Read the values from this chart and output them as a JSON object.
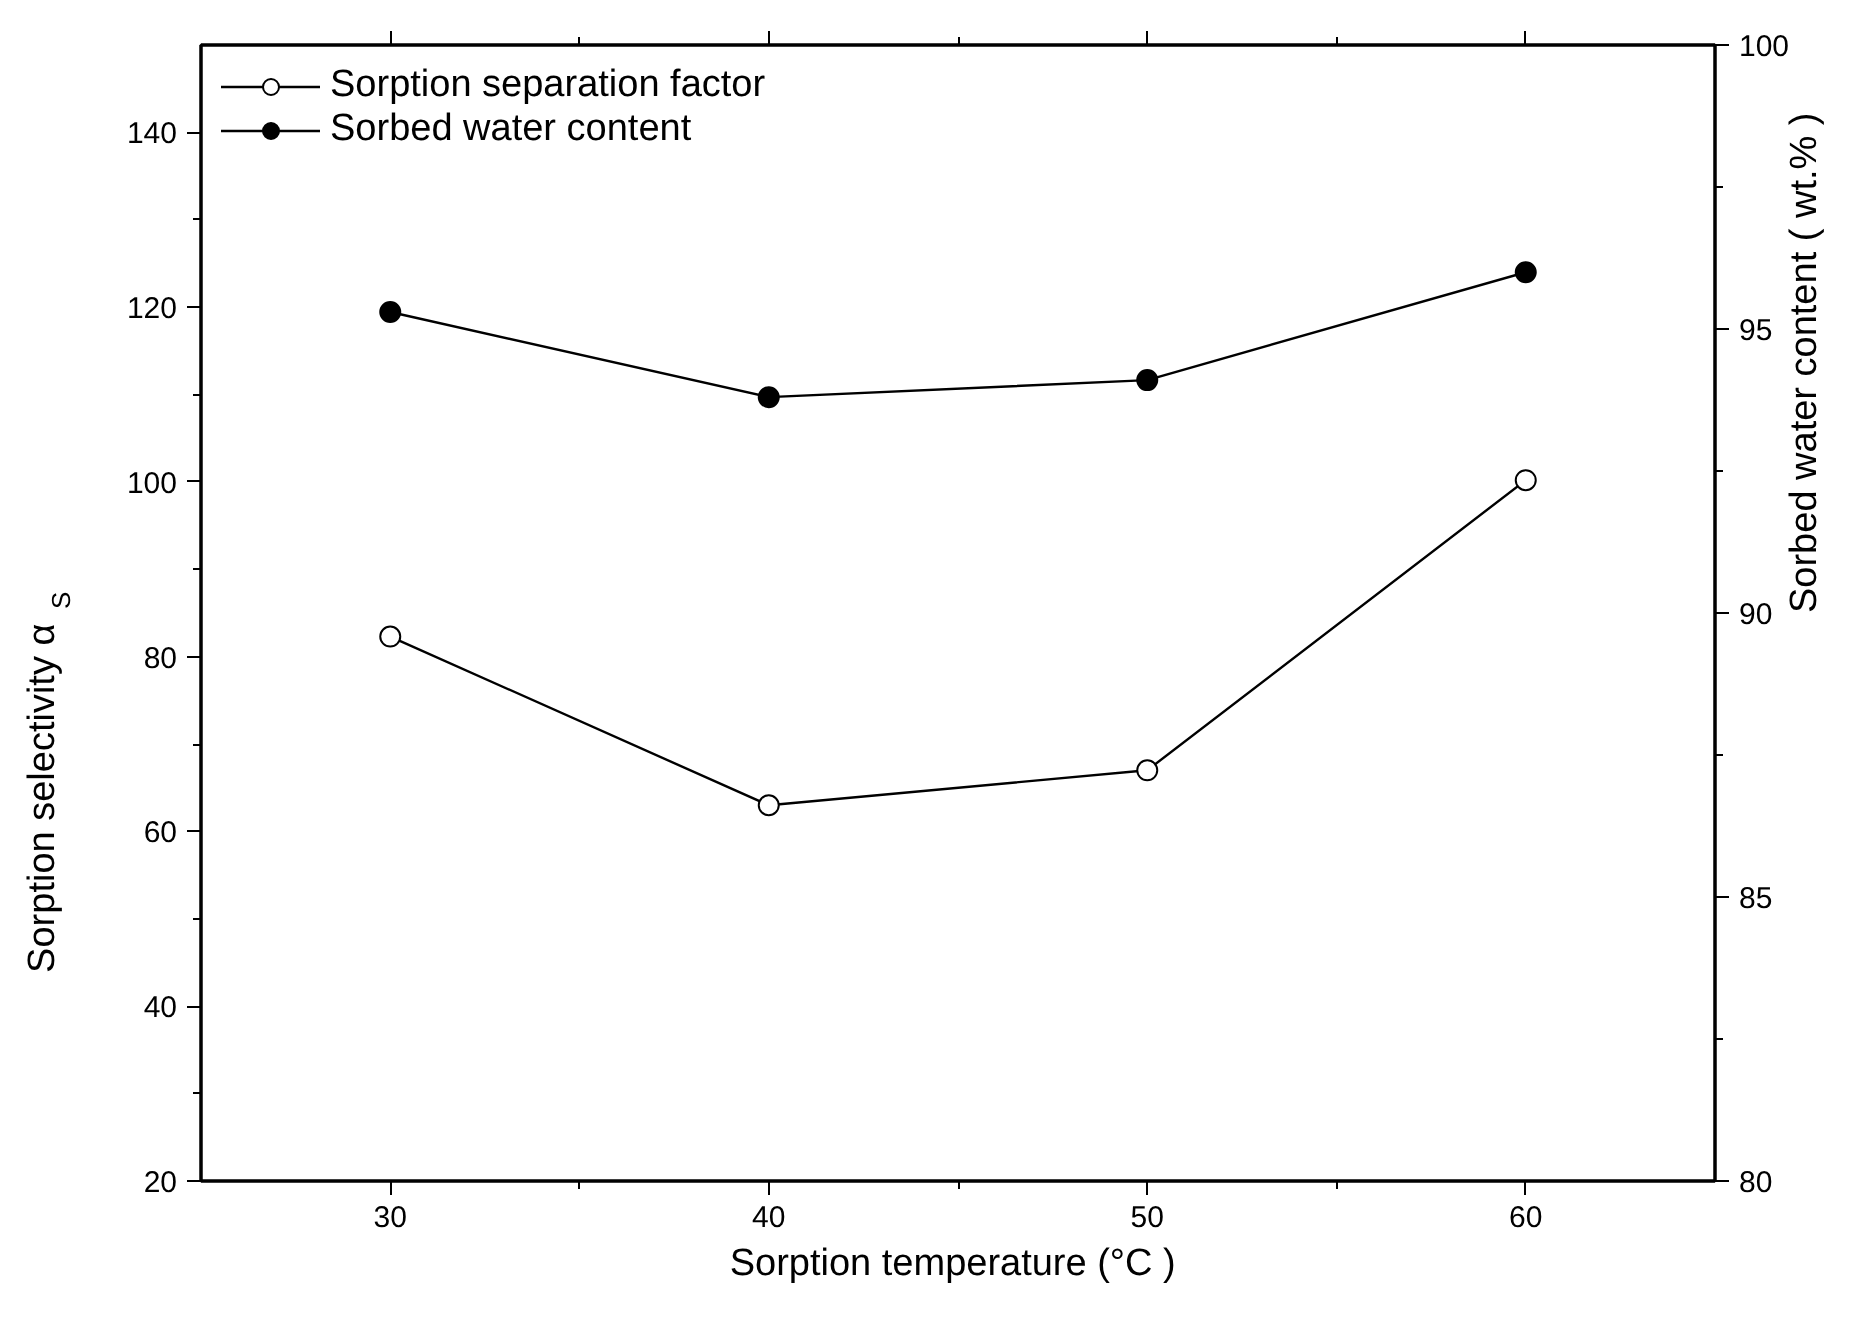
{
  "chart_data": {
    "type": "line",
    "xlabel": "Sorption temperature  (°C )",
    "ylabel": "Sorption selectivity  α$_{S}$",
    "y2label": "Sorbed water content ( wt.% )",
    "x": [
      30,
      40,
      50,
      60
    ],
    "xlim": [
      25,
      65
    ],
    "xticks": [
      30,
      40,
      50,
      60
    ],
    "ylim": [
      20,
      150
    ],
    "yticks": [
      20,
      40,
      60,
      80,
      100,
      120,
      140
    ],
    "y2lim": [
      80,
      100
    ],
    "y2ticks": [
      80,
      85,
      90,
      95,
      100
    ],
    "legend": "top left",
    "grid": false,
    "series": [
      {
        "name": "Sorption separation factor",
        "color": "#ffffff",
        "marker": "circle",
        "values": [
          82.3,
          63,
          67,
          100.2
        ]
      },
      {
        "name": "Sorbed water content",
        "color": "#000000",
        "marker": "circle",
        "axis": "y2",
        "values": [
          95.3,
          93.8,
          94.1,
          96.0
        ]
      }
    ]
  }
}
